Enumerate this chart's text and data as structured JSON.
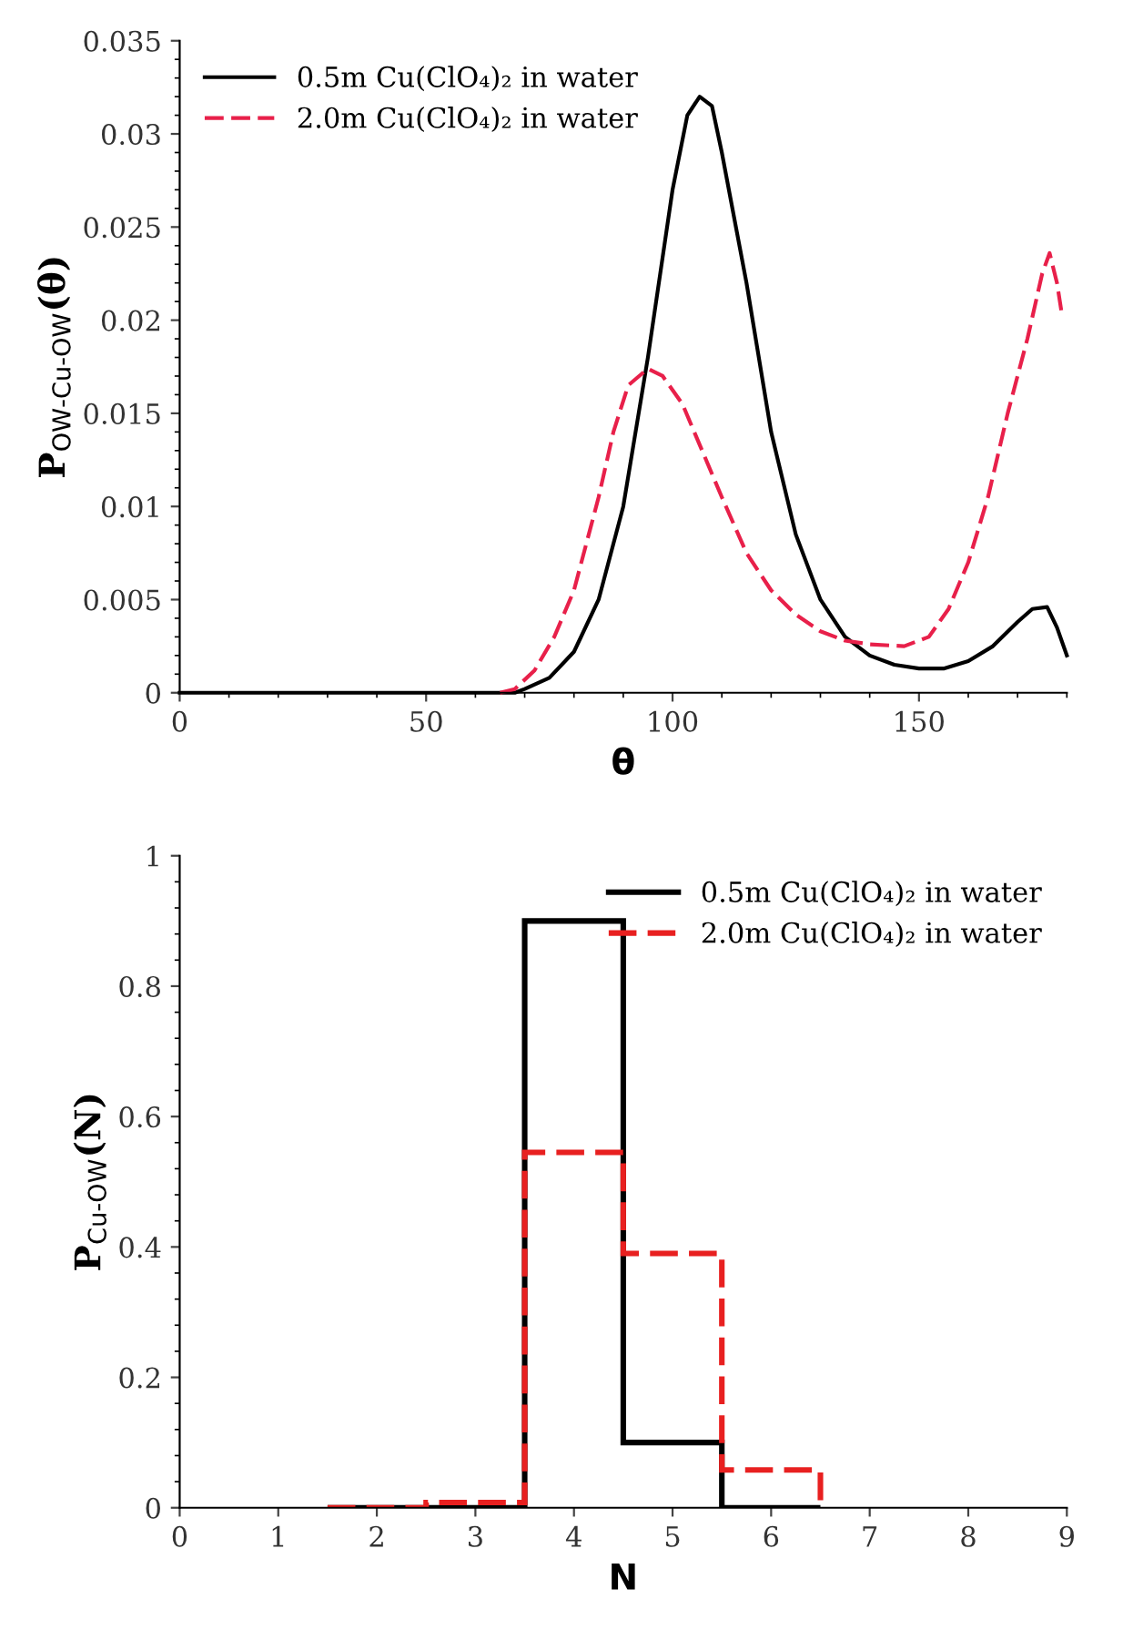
{
  "chart_data": [
    {
      "type": "line",
      "xlabel": "θ",
      "ylabel": "P$_{OW-Cu-OW}$(θ)",
      "xlim": [
        0,
        180
      ],
      "xticks": [
        0,
        50,
        100,
        150
      ],
      "ylim": [
        0,
        0.035
      ],
      "yticks": [
        0,
        0.005,
        0.01,
        0.015,
        0.02,
        0.025,
        0.03,
        0.035
      ],
      "legend": "top left",
      "grid": false,
      "series": [
        {
          "name": "0.5m Cu(ClO₄)₂ in water",
          "color": "#000000",
          "line_style": "solid",
          "x": [
            0,
            30,
            60,
            68,
            70,
            75,
            80,
            85,
            90,
            95,
            100,
            103,
            105.5,
            108,
            110,
            115,
            120,
            125,
            130,
            135,
            140,
            145,
            150,
            155,
            160,
            165,
            170,
            173,
            176,
            178,
            180
          ],
          "values": [
            0,
            0,
            0,
            0,
            0.0002,
            0.0008,
            0.0022,
            0.005,
            0.01,
            0.018,
            0.027,
            0.031,
            0.032,
            0.0315,
            0.029,
            0.022,
            0.014,
            0.0085,
            0.005,
            0.003,
            0.002,
            0.0015,
            0.0013,
            0.0013,
            0.0017,
            0.0025,
            0.0038,
            0.0045,
            0.0046,
            0.0035,
            0.002
          ]
        },
        {
          "name": "2.0m Cu(ClO₄)₂ in water",
          "color": "#e8204a",
          "line_style": "dashed",
          "x": [
            65,
            68,
            72,
            76,
            80,
            85,
            88,
            91,
            95,
            98,
            102,
            106,
            110,
            115,
            120,
            125,
            130,
            135,
            140,
            147,
            152,
            156,
            160,
            164,
            168,
            172,
            175,
            176.5,
            178,
            179
          ],
          "values": [
            0,
            0.0002,
            0.0012,
            0.003,
            0.0055,
            0.0105,
            0.014,
            0.0165,
            0.0174,
            0.017,
            0.0155,
            0.013,
            0.0105,
            0.0075,
            0.0055,
            0.0042,
            0.0033,
            0.0028,
            0.0026,
            0.0025,
            0.003,
            0.0045,
            0.007,
            0.0105,
            0.015,
            0.019,
            0.0225,
            0.0236,
            0.022,
            0.0203
          ]
        }
      ]
    },
    {
      "type": "histogram",
      "xlabel": "N",
      "ylabel": "P$_{Cu-OW}$(N)",
      "xlim": [
        0,
        9
      ],
      "xticks": [
        0,
        1,
        2,
        3,
        4,
        5,
        6,
        7,
        8,
        9
      ],
      "ylim": [
        0,
        1
      ],
      "yticks": [
        0,
        0.2,
        0.4,
        0.6,
        0.8,
        1
      ],
      "legend": "top right",
      "grid": false,
      "bins": [
        1.5,
        2.5,
        3.5,
        4.5,
        5.5,
        6.5
      ],
      "series": [
        {
          "name": "0.5m Cu(ClO₄)₂ in water",
          "color": "#000000",
          "line_style": "solid",
          "values": [
            0,
            0,
            0.9,
            0.1,
            0
          ]
        },
        {
          "name": "2.0m Cu(ClO₄)₂ in water",
          "color": "#e82020",
          "line_style": "dashed",
          "values": [
            0,
            0.008,
            0.545,
            0.39,
            0.058
          ]
        }
      ]
    }
  ]
}
